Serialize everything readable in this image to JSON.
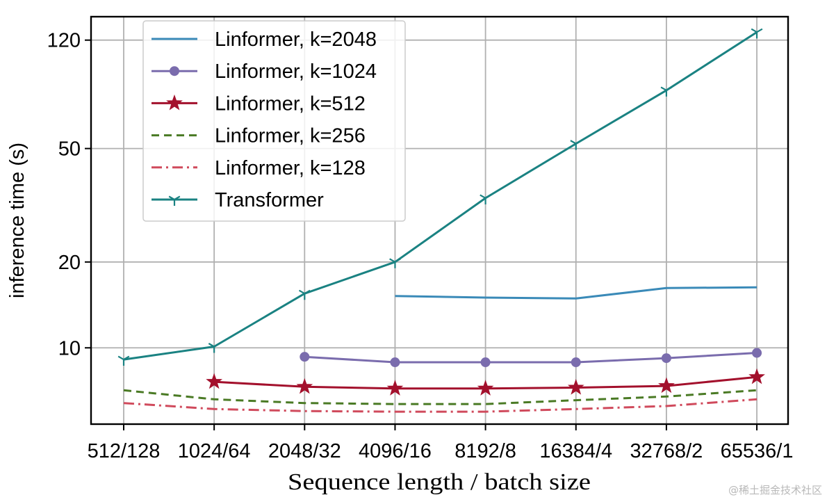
{
  "chart_data": {
    "type": "line",
    "xlabel": "Sequence length / batch size",
    "ylabel": "inference time (s)",
    "yscale": "log",
    "ylim": [
      5.4,
      145
    ],
    "yticks": [
      10,
      20,
      50,
      120
    ],
    "ytick_labels": [
      "10",
      "20",
      "50",
      "120"
    ],
    "grid": true,
    "legend_position": "top-left",
    "categories": [
      "512/128",
      "1024/64",
      "2048/32",
      "4096/16",
      "8192/8",
      "16384/4",
      "32768/2",
      "65536/1"
    ],
    "series": [
      {
        "name": "Linformer, k=2048",
        "values": [
          null,
          null,
          null,
          15.2,
          15.0,
          14.9,
          16.2,
          16.3
        ],
        "color": "#3a8ab8",
        "marker": "none",
        "dash": "solid"
      },
      {
        "name": "Linformer, k=1024",
        "values": [
          null,
          null,
          9.3,
          8.9,
          8.9,
          8.9,
          9.2,
          9.6
        ],
        "color": "#7a6cad",
        "marker": "circle",
        "dash": "solid"
      },
      {
        "name": "Linformer, k=512",
        "values": [
          null,
          7.6,
          7.3,
          7.2,
          7.2,
          7.25,
          7.35,
          7.9
        ],
        "color": "#a3102c",
        "marker": "star",
        "dash": "solid"
      },
      {
        "name": "Linformer, k=256",
        "values": [
          7.1,
          6.6,
          6.4,
          6.35,
          6.35,
          6.55,
          6.75,
          7.1
        ],
        "color": "#4a7a24",
        "marker": "none",
        "dash": "dashed"
      },
      {
        "name": "Linformer, k=128",
        "values": [
          6.4,
          6.1,
          6.0,
          5.97,
          5.97,
          6.1,
          6.25,
          6.6
        ],
        "color": "#d04a5c",
        "marker": "none",
        "dash": "dashdot"
      },
      {
        "name": "Transformer",
        "values": [
          9.1,
          10.1,
          15.5,
          20.0,
          33.5,
          52.0,
          80.0,
          128.0
        ],
        "color": "#1a8282",
        "marker": "tri",
        "dash": "solid"
      }
    ]
  },
  "watermark": "@稀土掘金技术社区"
}
